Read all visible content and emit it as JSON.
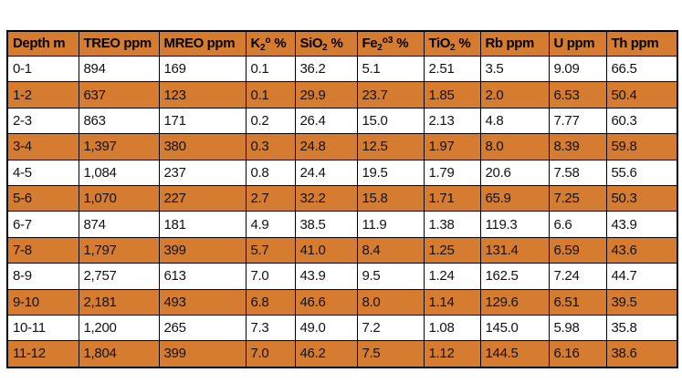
{
  "colors": {
    "accent_orange": "#d57c30",
    "border": "#000000",
    "text": "#121212",
    "row_white": "#ffffff"
  },
  "table": {
    "columns": [
      {
        "pre": "Depth m",
        "sub": "",
        "sup": "",
        "post": ""
      },
      {
        "pre": "TREO ppm",
        "sub": "",
        "sup": "",
        "post": ""
      },
      {
        "pre": "MREO ppm",
        "sub": "",
        "sup": "",
        "post": ""
      },
      {
        "pre": "K",
        "sub": "2",
        "sup": "o",
        "post": " %"
      },
      {
        "pre": "SiO",
        "sub": "2",
        "sup": "",
        "post": " %"
      },
      {
        "pre": "Fe",
        "sub": "2",
        "sup": "o3",
        "post": " %"
      },
      {
        "pre": "TiO",
        "sub": "2",
        "sup": "",
        "post": " %"
      },
      {
        "pre": "Rb ppm",
        "sub": "",
        "sup": "",
        "post": ""
      },
      {
        "pre": "U ppm",
        "sub": "",
        "sup": "",
        "post": ""
      },
      {
        "pre": "Th ppm",
        "sub": "",
        "sup": "",
        "post": ""
      }
    ],
    "rows": [
      [
        "0-1",
        "894",
        "169",
        "0.1",
        "36.2",
        "5.1",
        "2.51",
        "3.5",
        "9.09",
        "66.5"
      ],
      [
        "1-2",
        "637",
        "123",
        "0.1",
        "29.9",
        "23.7",
        "1.85",
        "2.0",
        "6.53",
        "50.4"
      ],
      [
        "2-3",
        "863",
        "171",
        "0.2",
        "26.4",
        "15.0",
        "2.13",
        "4.8",
        "7.77",
        "60.3"
      ],
      [
        "3-4",
        "1,397",
        "380",
        "0.3",
        "24.8",
        "12.5",
        "1.97",
        "8.0",
        "8.39",
        "59.8"
      ],
      [
        "4-5",
        "1,084",
        "237",
        "0.8",
        "24.4",
        "19.5",
        "1.79",
        "20.6",
        "7.58",
        "55.6"
      ],
      [
        "5-6",
        "1,070",
        "227",
        "2.7",
        "32.2",
        "15.8",
        "1.71",
        "65.9",
        "7.25",
        "50.3"
      ],
      [
        "6-7",
        "874",
        "181",
        "4.9",
        "38.5",
        "11.9",
        "1.38",
        "119.3",
        "6.6",
        "43.9"
      ],
      [
        "7-8",
        "1,797",
        "399",
        "5.7",
        "41.0",
        "8.4",
        "1.25",
        "131.4",
        "6.59",
        "43.6"
      ],
      [
        "8-9",
        "2,757",
        "613",
        "7.0",
        "43.9",
        "9.5",
        "1.24",
        "162.5",
        "7.24",
        "44.7"
      ],
      [
        "9-10",
        "2,181",
        "493",
        "6.8",
        "46.6",
        "8.0",
        "1.14",
        "129.6",
        "6.51",
        "39.5"
      ],
      [
        "10-11",
        "1,200",
        "265",
        "7.3",
        "49.0",
        "7.2",
        "1.08",
        "145.0",
        "5.98",
        "35.8"
      ],
      [
        "11-12",
        "1,804",
        "399",
        "7.0",
        "46.2",
        "7.5",
        "1.12",
        "144.5",
        "6.16",
        "38.6"
      ]
    ]
  }
}
